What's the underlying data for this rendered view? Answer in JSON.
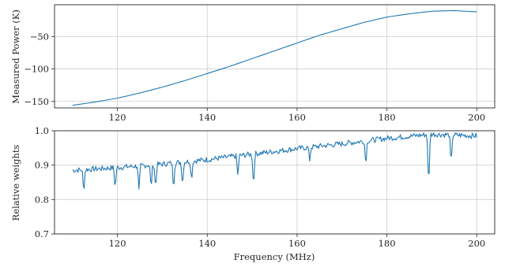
{
  "figure": {
    "top_panel": {
      "ylabel": "Measured Power (K)"
    },
    "bottom_panel": {
      "ylabel": "Relative weights",
      "xlabel": "Frequency (MHz)"
    }
  },
  "colors": {
    "series": "#1f77b4",
    "grid": "#cfcfcf",
    "axes": "#262626"
  },
  "chart_data": [
    {
      "type": "line",
      "title": "",
      "xlabel": "",
      "ylabel": "Measured Power (K)",
      "xlim": [
        106,
        204
      ],
      "ylim": [
        -160,
        -1
      ],
      "xticks": [
        120,
        140,
        160,
        180,
        200
      ],
      "yticks": [
        -150,
        -100,
        -50
      ],
      "grid": true,
      "series": [
        {
          "color": "#1f77b4",
          "x": [
            110,
            115,
            120,
            125,
            130,
            135,
            140,
            145,
            150,
            155,
            160,
            165,
            170,
            175,
            180,
            185,
            190,
            195,
            200
          ],
          "y": [
            -156,
            -151,
            -145,
            -137,
            -128,
            -118,
            -107,
            -96,
            -84,
            -72,
            -60,
            -48,
            -38,
            -28,
            -20,
            -15,
            -11,
            -10,
            -12
          ]
        }
      ]
    },
    {
      "type": "line",
      "title": "",
      "xlabel": "Frequency (MHz)",
      "ylabel": "Relative weights",
      "xlim": [
        106,
        204
      ],
      "ylim": [
        0.7,
        1.0
      ],
      "xticks": [
        120,
        140,
        160,
        180,
        200
      ],
      "yticks": [
        0.7,
        0.8,
        0.9,
        1.0
      ],
      "grid": true,
      "baseline": {
        "x": [
          110,
          120,
          130,
          140,
          150,
          160,
          170,
          180,
          190,
          200
        ],
        "y": [
          0.885,
          0.893,
          0.903,
          0.916,
          0.932,
          0.948,
          0.962,
          0.978,
          0.99,
          0.985
        ]
      },
      "dips": [
        {
          "x": 112.5,
          "y": 0.82
        },
        {
          "x": 119.5,
          "y": 0.83
        },
        {
          "x": 124.8,
          "y": 0.825
        },
        {
          "x": 127.5,
          "y": 0.83
        },
        {
          "x": 128.5,
          "y": 0.83
        },
        {
          "x": 132.5,
          "y": 0.832
        },
        {
          "x": 134.5,
          "y": 0.838
        },
        {
          "x": 136.5,
          "y": 0.855
        },
        {
          "x": 146.8,
          "y": 0.87
        },
        {
          "x": 150.3,
          "y": 0.835
        },
        {
          "x": 162.8,
          "y": 0.915
        },
        {
          "x": 175.3,
          "y": 0.9
        },
        {
          "x": 189.3,
          "y": 0.825
        },
        {
          "x": 194.3,
          "y": 0.895
        }
      ]
    }
  ]
}
